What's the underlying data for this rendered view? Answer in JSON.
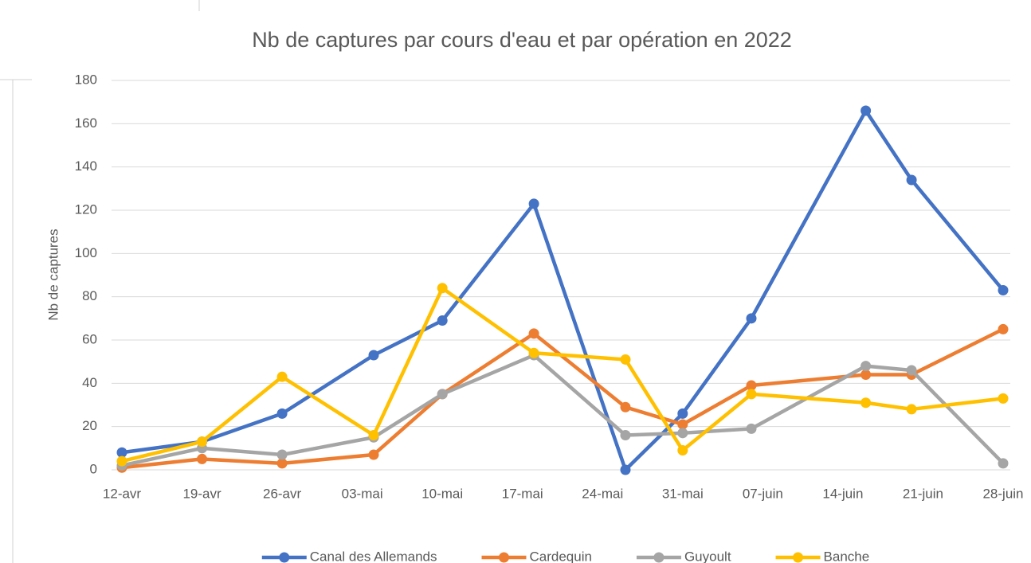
{
  "chart_data": {
    "type": "line",
    "title": "Nb de captures par cours d'eau et par opération en 2022",
    "y_label": "Nb de captures",
    "x": [
      "2022-04-12",
      "2022-04-19",
      "2022-04-26",
      "2022-05-04",
      "2022-05-10",
      "2022-05-18",
      "2022-05-26",
      "2022-05-31",
      "2022-06-06",
      "2022-06-16",
      "2022-06-20",
      "2022-06-28"
    ],
    "series": [
      {
        "name": "Canal des Allemands",
        "color": "#4472c4",
        "values": [
          8,
          13,
          26,
          53,
          69,
          123,
          0,
          26,
          70,
          166,
          134,
          83
        ]
      },
      {
        "name": "Cardequin",
        "color": "#ed7d31",
        "values": [
          1,
          5,
          3,
          7,
          35,
          63,
          29,
          21,
          39,
          44,
          44,
          65
        ]
      },
      {
        "name": "Guyoult",
        "color": "#a5a5a5",
        "values": [
          2,
          10,
          7,
          15,
          35,
          53,
          16,
          17,
          19,
          48,
          46,
          3
        ]
      },
      {
        "name": "Banche",
        "color": "#ffc000",
        "values": [
          4,
          13,
          43,
          16,
          84,
          54,
          51,
          9,
          35,
          31,
          28,
          33
        ]
      }
    ],
    "xlim": [
      "2022-04-12",
      "2022-06-28"
    ],
    "xticks": [
      {
        "value": "2022-04-12",
        "label": "12-avr"
      },
      {
        "value": "2022-04-19",
        "label": "19-avr"
      },
      {
        "value": "2022-04-26",
        "label": "26-avr"
      },
      {
        "value": "2022-05-03",
        "label": "03-mai"
      },
      {
        "value": "2022-05-10",
        "label": "10-mai"
      },
      {
        "value": "2022-05-17",
        "label": "17-mai"
      },
      {
        "value": "2022-05-24",
        "label": "24-mai"
      },
      {
        "value": "2022-05-31",
        "label": "31-mai"
      },
      {
        "value": "2022-06-07",
        "label": "07-juin"
      },
      {
        "value": "2022-06-14",
        "label": "14-juin"
      },
      {
        "value": "2022-06-21",
        "label": "21-juin"
      },
      {
        "value": "2022-06-28",
        "label": "28-juin"
      }
    ],
    "ylim": [
      0,
      180
    ],
    "yticks": [
      0,
      20,
      40,
      60,
      80,
      100,
      120,
      140,
      160,
      180
    ],
    "grid": true,
    "legend": "bottom"
  }
}
